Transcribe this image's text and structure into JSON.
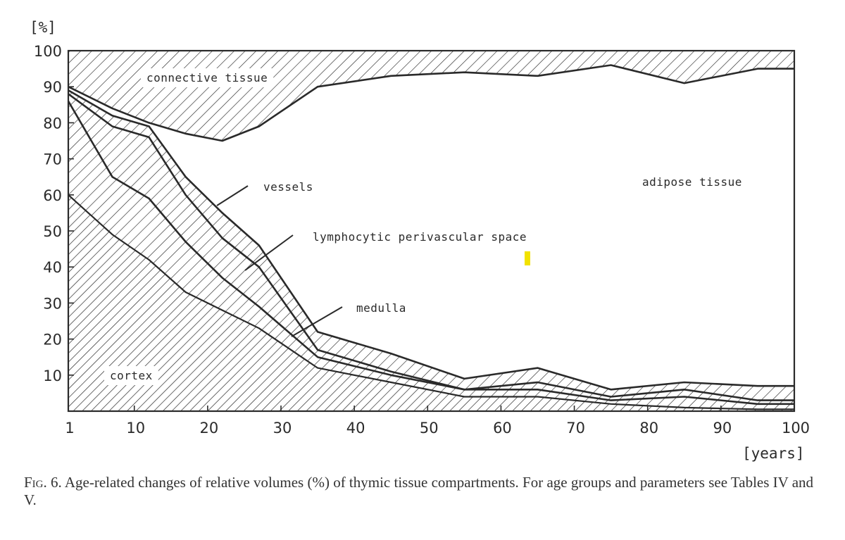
{
  "chart_data": {
    "type": "area",
    "xlabel": "[years]",
    "ylabel": "[%]",
    "xlim": [
      1,
      100
    ],
    "ylim": [
      0,
      100
    ],
    "x_ticks": [
      1,
      10,
      20,
      30,
      40,
      50,
      60,
      70,
      80,
      90,
      100
    ],
    "y_ticks": [
      10,
      20,
      30,
      40,
      50,
      60,
      70,
      80,
      90,
      100
    ],
    "grid": false,
    "x": [
      1,
      7,
      12,
      17,
      22,
      27,
      35,
      45,
      55,
      65,
      75,
      85,
      95,
      100
    ],
    "boundaries": [
      {
        "between": "cortex / medulla",
        "values": [
          60,
          49,
          42,
          33,
          28,
          23,
          12,
          8,
          4,
          4,
          2,
          1,
          0.5,
          0.5
        ]
      },
      {
        "between": "medulla / lymphocytic perivascular space",
        "values": [
          86,
          65,
          59,
          47,
          37,
          29,
          15,
          10,
          6,
          6,
          3,
          4,
          2,
          2
        ]
      },
      {
        "between": "lymphocytic perivascular space / vessels",
        "values": [
          88,
          79,
          76,
          60,
          48,
          40,
          17,
          11,
          6,
          8,
          4,
          6,
          3,
          3
        ]
      },
      {
        "between": "vessels / adipose tissue",
        "values": [
          89,
          82,
          79,
          65,
          55,
          46,
          22,
          16,
          9,
          12,
          6,
          8,
          7,
          7
        ]
      },
      {
        "between": "adipose tissue / connective tissue",
        "values": [
          90,
          84,
          80,
          77,
          75,
          79,
          90,
          93,
          94,
          93,
          96,
          91,
          95,
          95
        ]
      }
    ],
    "regions": [
      {
        "name": "cortex",
        "label": "cortex",
        "lower": null,
        "upper": 0,
        "hatch": "dense"
      },
      {
        "name": "medulla",
        "label": "medulla",
        "lower": 0,
        "upper": 1,
        "hatch": "sparse"
      },
      {
        "name": "lymphocytic perivascular space",
        "label": "lymphocytic perivascular space",
        "lower": 1,
        "upper": 2,
        "hatch": "sparse"
      },
      {
        "name": "vessels",
        "label": "vessels",
        "lower": 2,
        "upper": 3,
        "hatch": "sparse"
      },
      {
        "name": "adipose tissue",
        "label": "adipose tissue",
        "lower": 3,
        "upper": 4,
        "hatch": "none"
      },
      {
        "name": "connective tissue",
        "label": "connective tissue",
        "lower": 4,
        "upper": null,
        "hatch": "sparse"
      }
    ],
    "colors": {
      "ink": "#2a2a2a",
      "paper": "#ffffff",
      "marker": "#f2e200"
    }
  },
  "caption": {
    "fig": "Fig. 6.",
    "text": " Age-related changes of relative volumes (%) of thymic tissue compartments. For age groups and parameters see Tables IV and V."
  }
}
